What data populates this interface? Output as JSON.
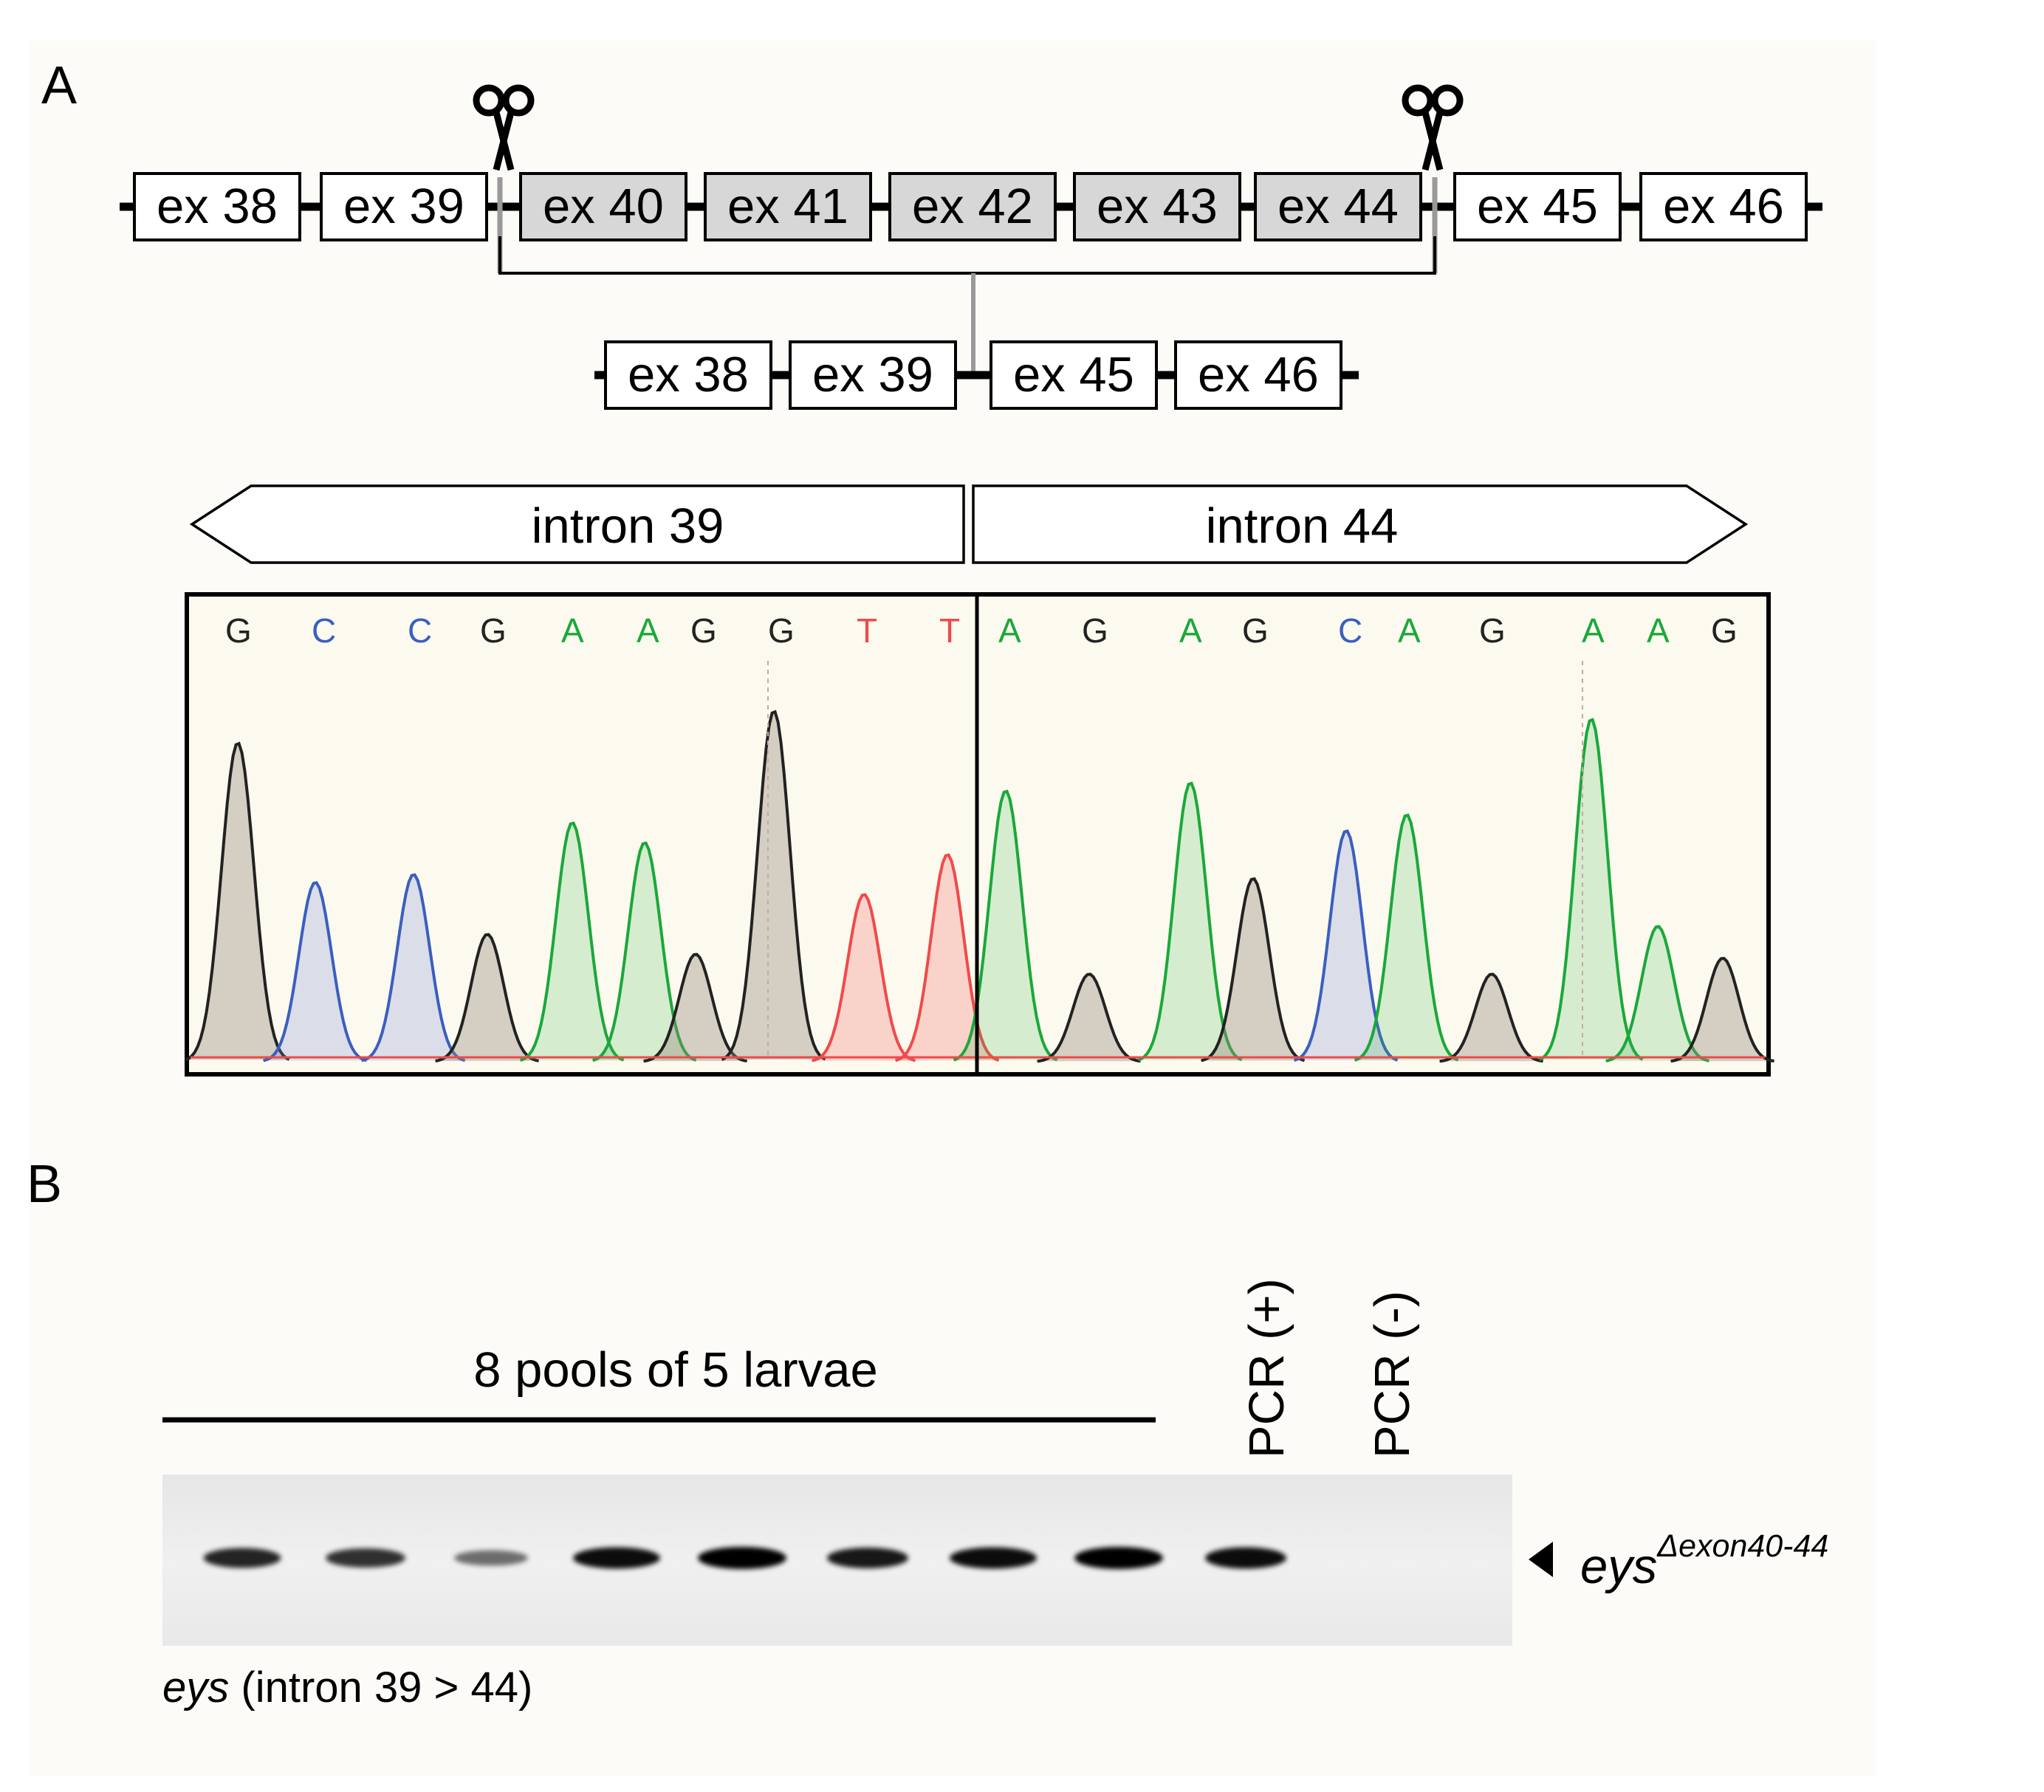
{
  "panels": {
    "a": "A",
    "b": "B"
  },
  "gene_top": [
    {
      "label": "ex 38",
      "deleted": false
    },
    {
      "label": "ex 39",
      "deleted": false
    },
    {
      "label": "ex 40",
      "deleted": true
    },
    {
      "label": "ex 41",
      "deleted": true
    },
    {
      "label": "ex 42",
      "deleted": true
    },
    {
      "label": "ex 43",
      "deleted": true
    },
    {
      "label": "ex 44",
      "deleted": true
    },
    {
      "label": "ex 45",
      "deleted": false
    },
    {
      "label": "ex 46",
      "deleted": false
    }
  ],
  "gene_bottom": [
    {
      "label": "ex 38"
    },
    {
      "label": "ex 39"
    },
    {
      "label": "ex 45"
    },
    {
      "label": "ex 46"
    }
  ],
  "introns": {
    "left": "intron 39",
    "right": "intron 44"
  },
  "sequence": {
    "left": [
      {
        "base": "G",
        "height": 0.8
      },
      {
        "base": "C",
        "height": 0.45
      },
      {
        "base": "C",
        "height": 0.47
      },
      {
        "base": "G",
        "height": 0.32
      },
      {
        "base": "A",
        "height": 0.6
      },
      {
        "base": "A",
        "height": 0.55
      },
      {
        "base": "G",
        "height": 0.27
      },
      {
        "base": "G",
        "height": 0.88
      },
      {
        "base": "T",
        "height": 0.42
      },
      {
        "base": "T",
        "height": 0.52
      }
    ],
    "right": [
      {
        "base": "A",
        "height": 0.68
      },
      {
        "base": "G",
        "height": 0.22
      },
      {
        "base": "A",
        "height": 0.7
      },
      {
        "base": "G",
        "height": 0.46
      },
      {
        "base": "C",
        "height": 0.58
      },
      {
        "base": "A",
        "height": 0.62
      },
      {
        "base": "G",
        "height": 0.22
      },
      {
        "base": "A",
        "height": 0.86
      },
      {
        "base": "A",
        "height": 0.34
      },
      {
        "base": "G",
        "height": 0.26
      }
    ]
  },
  "base_colors": {
    "G": "#222222",
    "C": "#3b5fbf",
    "A": "#1aa83a",
    "T": "#f04a4a"
  },
  "gel": {
    "group_label": "8 pools of 5 larvae",
    "lane_labels": [
      "PCR (+)",
      "PCR (-)"
    ],
    "band_intensity": [
      0.85,
      0.8,
      0.55,
      0.95,
      1.0,
      0.9,
      0.95,
      1.0,
      0.95,
      0.0
    ],
    "band_label_main": "eys",
    "band_label_sup": "Δexon40-44",
    "caption_italic": "eys",
    "caption_rest": " (intron 39 > 44)"
  }
}
